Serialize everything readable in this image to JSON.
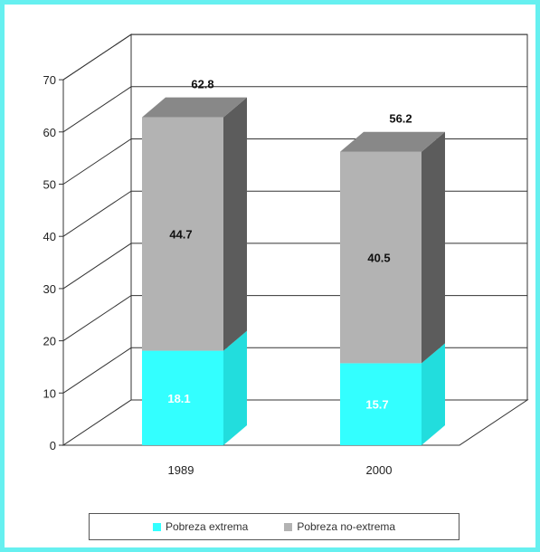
{
  "chart_data": {
    "type": "bar",
    "stacked": true,
    "three_d": true,
    "categories": [
      "1989",
      "2000"
    ],
    "series": [
      {
        "name": "Pobreza extrema",
        "values": [
          18.1,
          15.7
        ],
        "color": "#33ffff",
        "side_color": "#22dddd",
        "top_color": "#22e6e6",
        "label_color": "#ffffff"
      },
      {
        "name": "Pobreza no-extrema",
        "values": [
          44.7,
          40.5
        ],
        "color": "#b3b3b3",
        "side_color": "#5c5c5c",
        "top_color": "#888888",
        "label_color": "#111111"
      }
    ],
    "totals": [
      62.8,
      56.2
    ],
    "total_labels": [
      "62.8",
      "56.2"
    ],
    "segment_labels": [
      [
        "18.1",
        "15.7"
      ],
      [
        "44.7",
        "40.5"
      ]
    ],
    "yticks": [
      "0",
      "10",
      "20",
      "30",
      "40",
      "50",
      "60",
      "70"
    ],
    "ylim": [
      0,
      70
    ],
    "grid": true,
    "legend_position": "bottom",
    "title": "",
    "xlabel": "",
    "ylabel": ""
  }
}
